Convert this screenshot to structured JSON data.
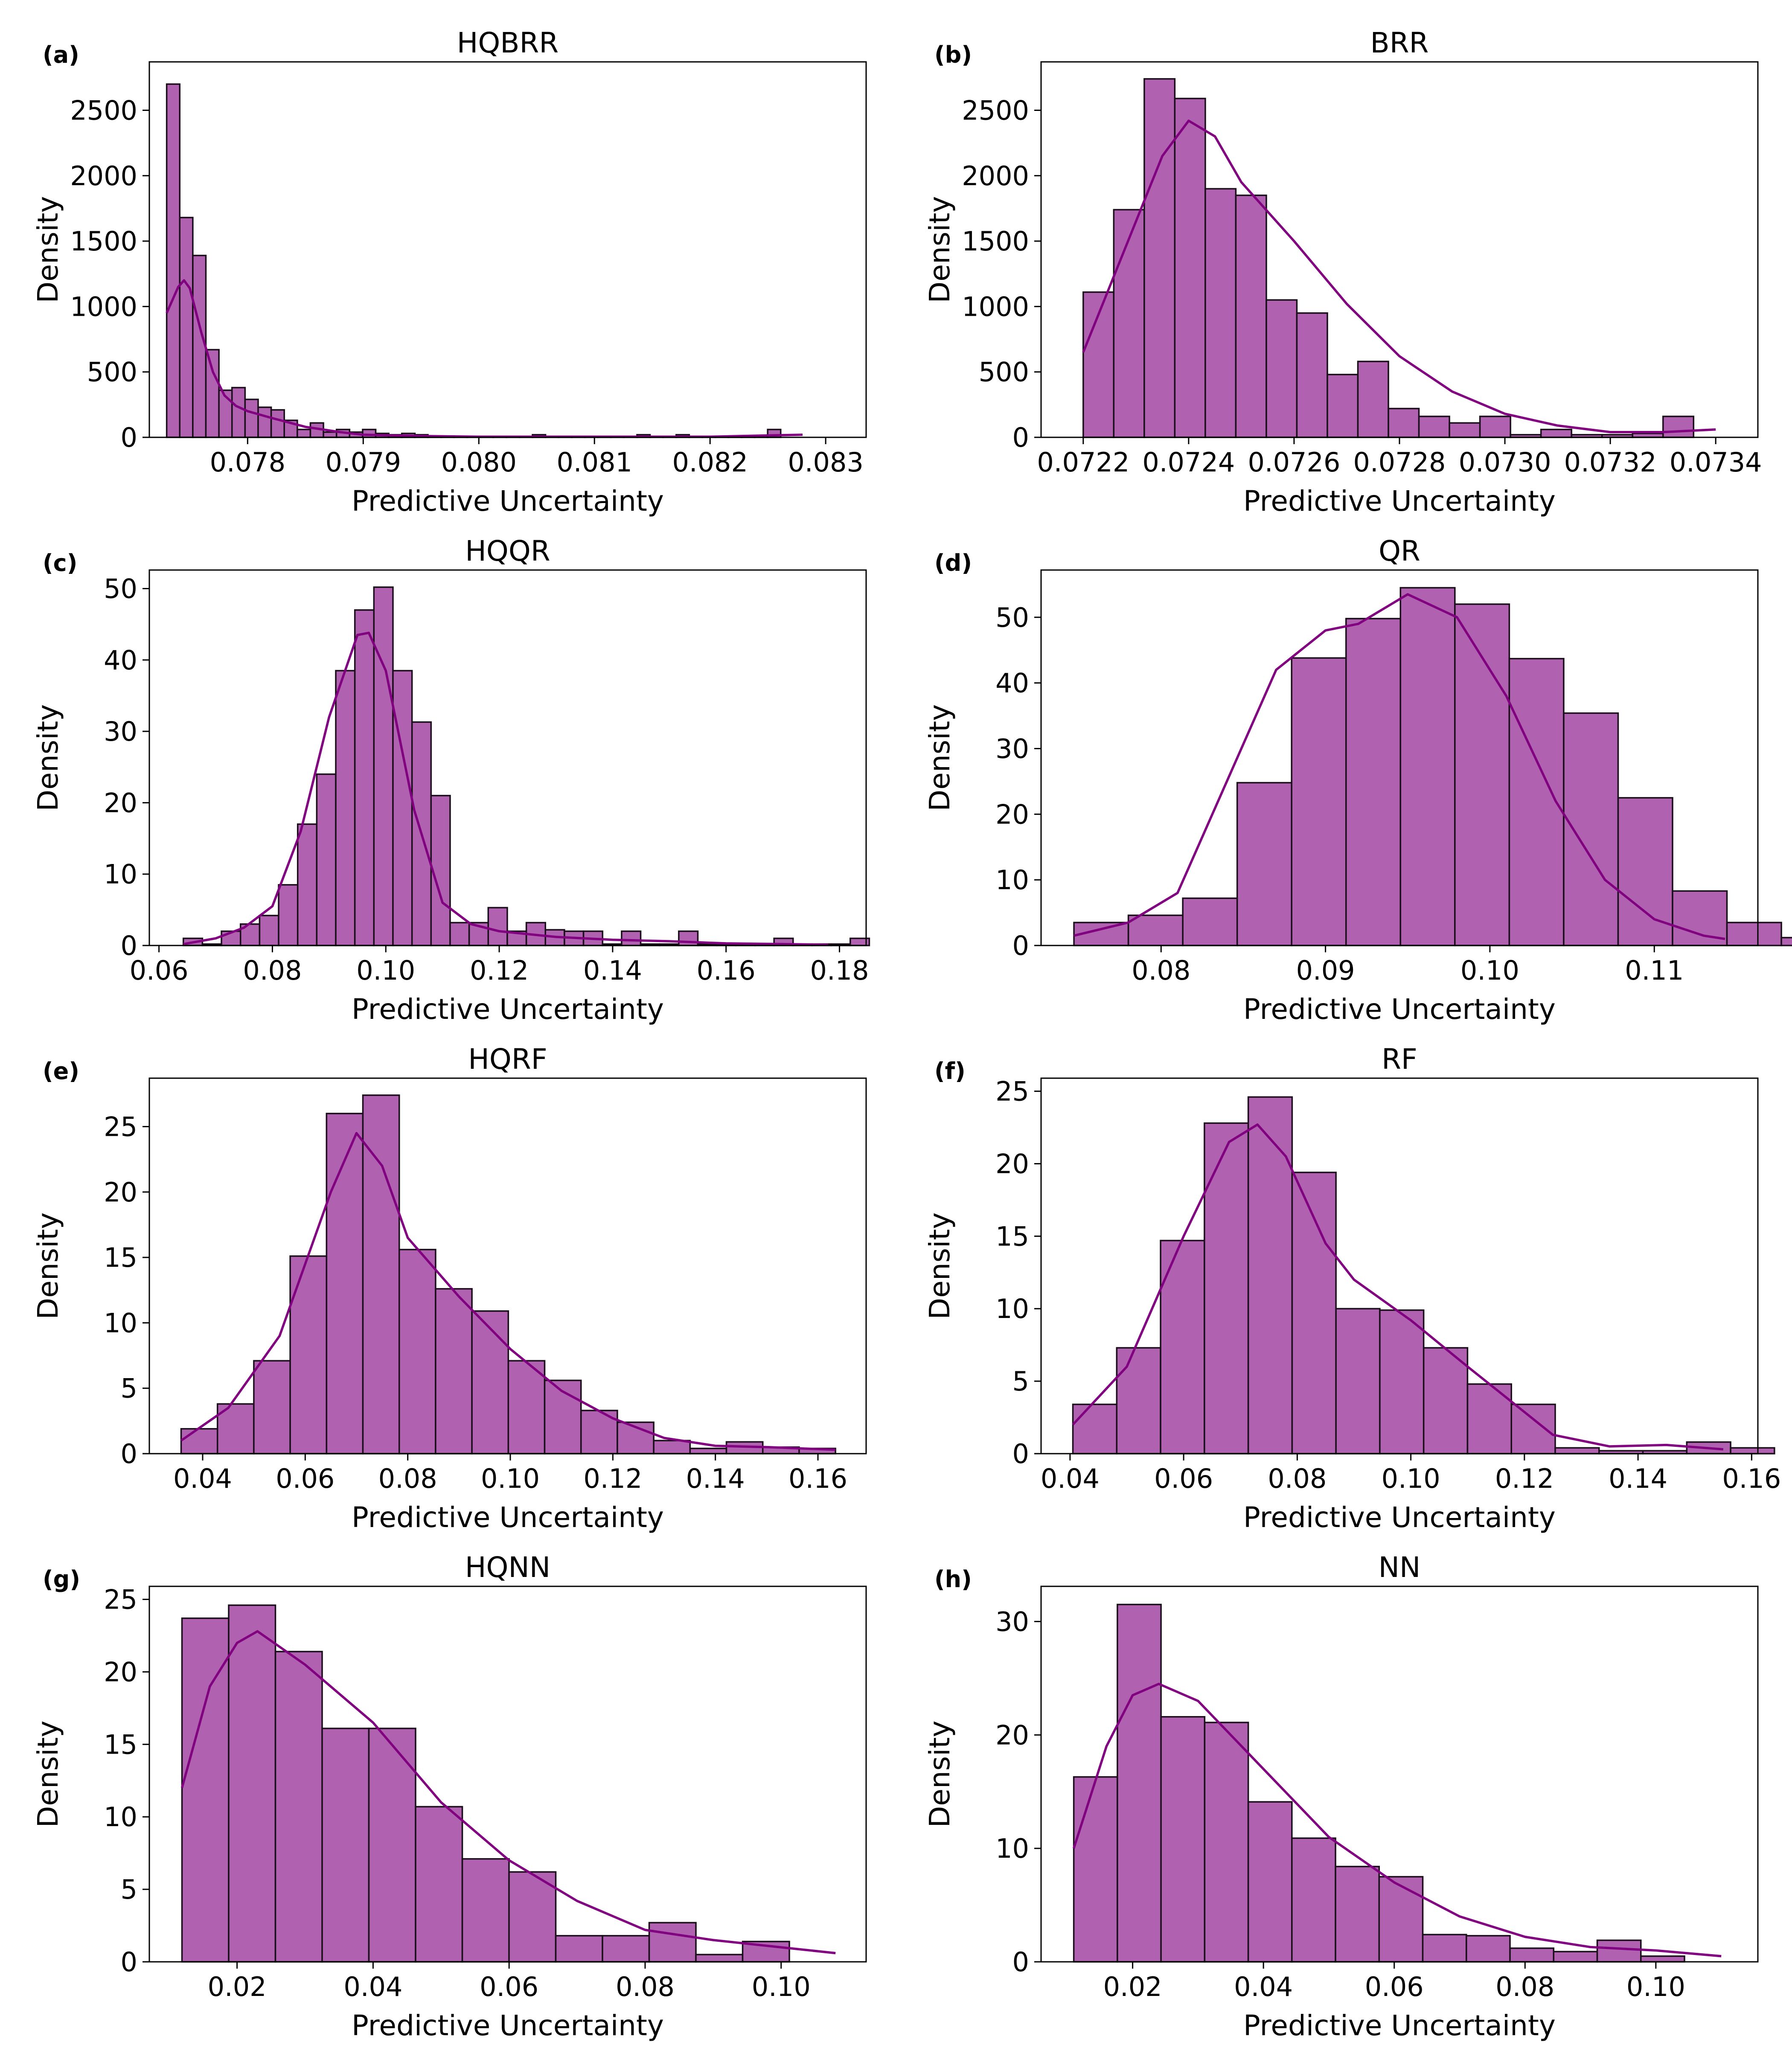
{
  "chart_data": [
    {
      "panel_label": "(a)",
      "title": "HQBRR",
      "type": "bar",
      "xlabel": "Predictive Uncertainty",
      "ylabel": "Density",
      "xlim": [
        0.07715,
        0.08335
      ],
      "ylim": [
        0,
        2870
      ],
      "xticks": [
        0.078,
        0.079,
        0.08,
        0.081,
        0.082,
        0.083
      ],
      "xtick_labels": [
        "0.078",
        "0.079",
        "0.080",
        "0.081",
        "0.082",
        "0.083"
      ],
      "yticks": [
        0,
        500,
        1000,
        1500,
        2000,
        2500
      ],
      "ytick_labels": [
        "0",
        "500",
        "1000",
        "1500",
        "2000",
        "2500"
      ],
      "bin_start": 0.0773,
      "bin_width": 0.000113,
      "values": [
        2700,
        1680,
        1390,
        670,
        360,
        380,
        290,
        230,
        210,
        130,
        60,
        110,
        40,
        60,
        40,
        60,
        30,
        20,
        30,
        20,
        10,
        10,
        5,
        5,
        5,
        5,
        5,
        5,
        20,
        5,
        5,
        5,
        5,
        5,
        5,
        5,
        20,
        5,
        5,
        20,
        5,
        5,
        5,
        5,
        5,
        5,
        60
      ],
      "kde": [
        [
          0.0773,
          950
        ],
        [
          0.0774,
          1150
        ],
        [
          0.07745,
          1200
        ],
        [
          0.0775,
          1140
        ],
        [
          0.0776,
          800
        ],
        [
          0.0777,
          500
        ],
        [
          0.0778,
          320
        ],
        [
          0.0779,
          240
        ],
        [
          0.078,
          200
        ],
        [
          0.0782,
          150
        ],
        [
          0.0785,
          80
        ],
        [
          0.0788,
          40
        ],
        [
          0.079,
          20
        ],
        [
          0.0795,
          10
        ],
        [
          0.08,
          5
        ],
        [
          0.081,
          5
        ],
        [
          0.082,
          5
        ],
        [
          0.0828,
          20
        ]
      ]
    },
    {
      "panel_label": "(b)",
      "title": "BRR",
      "type": "bar",
      "xlabel": "Predictive Uncertainty",
      "ylabel": "Density",
      "xlim": [
        0.07212,
        0.07348
      ],
      "ylim": [
        0,
        2870
      ],
      "xticks": [
        0.0722,
        0.0724,
        0.0726,
        0.0728,
        0.073,
        0.0732,
        0.0734
      ],
      "xtick_labels": [
        "0.0722",
        "0.0724",
        "0.0726",
        "0.0728",
        "0.0730",
        "0.0732",
        "0.0734"
      ],
      "yticks": [
        0,
        500,
        1000,
        1500,
        2000,
        2500
      ],
      "ytick_labels": [
        "0",
        "500",
        "1000",
        "1500",
        "2000",
        "2500"
      ],
      "bin_start": 0.0722,
      "bin_width": 5.79e-05,
      "values": [
        1110,
        1740,
        2740,
        2590,
        1900,
        1850,
        1050,
        950,
        480,
        580,
        220,
        160,
        110,
        160,
        20,
        60,
        20,
        20,
        30,
        160
      ],
      "kde": [
        [
          0.0722,
          650
        ],
        [
          0.0723,
          1650
        ],
        [
          0.07235,
          2150
        ],
        [
          0.0724,
          2420
        ],
        [
          0.07245,
          2300
        ],
        [
          0.0725,
          1950
        ],
        [
          0.0726,
          1500
        ],
        [
          0.0727,
          1020
        ],
        [
          0.0728,
          620
        ],
        [
          0.0729,
          350
        ],
        [
          0.073,
          180
        ],
        [
          0.0731,
          90
        ],
        [
          0.0732,
          40
        ],
        [
          0.0733,
          40
        ],
        [
          0.0734,
          60
        ]
      ]
    },
    {
      "panel_label": "(c)",
      "title": "HQQR",
      "type": "bar",
      "xlabel": "Predictive Uncertainty",
      "ylabel": "Density",
      "xlim": [
        0.0583,
        0.1847
      ],
      "ylim": [
        0,
        52.6
      ],
      "xticks": [
        0.06,
        0.08,
        0.1,
        0.12,
        0.14,
        0.16,
        0.18
      ],
      "xtick_labels": [
        "0.06",
        "0.08",
        "0.10",
        "0.12",
        "0.14",
        "0.16",
        "0.18"
      ],
      "yticks": [
        0,
        10,
        20,
        30,
        40,
        50
      ],
      "ytick_labels": [
        "0",
        "10",
        "20",
        "30",
        "40",
        "50"
      ],
      "bin_start": 0.0643,
      "bin_width": 0.00336,
      "values": [
        1.0,
        0.2,
        2.0,
        3.0,
        4.2,
        8.5,
        17.0,
        24.0,
        38.5,
        47.0,
        50.2,
        38.5,
        31.3,
        21.0,
        3.2,
        3.2,
        5.3,
        2.0,
        3.2,
        2.2,
        2.0,
        2.0,
        0.2,
        2.0,
        0.2,
        0.2,
        2.0,
        0.2,
        0.2,
        0.2,
        0.2,
        1.0,
        0.2,
        0.2,
        0.2,
        1.0
      ],
      "kde": [
        [
          0.0643,
          0.2
        ],
        [
          0.07,
          1.0
        ],
        [
          0.075,
          2.5
        ],
        [
          0.08,
          5.5
        ],
        [
          0.085,
          16.0
        ],
        [
          0.09,
          32.0
        ],
        [
          0.095,
          43.5
        ],
        [
          0.097,
          43.8
        ],
        [
          0.1,
          38.5
        ],
        [
          0.105,
          19.0
        ],
        [
          0.11,
          6.0
        ],
        [
          0.115,
          3.0
        ],
        [
          0.12,
          2.0
        ],
        [
          0.13,
          1.2
        ],
        [
          0.14,
          0.8
        ],
        [
          0.15,
          0.6
        ],
        [
          0.16,
          0.3
        ],
        [
          0.17,
          0.2
        ],
        [
          0.178,
          0.1
        ]
      ]
    },
    {
      "panel_label": "(d)",
      "title": "QR",
      "type": "bar",
      "xlabel": "Predictive Uncertainty",
      "ylabel": "Density",
      "xlim": [
        0.0727,
        0.1163
      ],
      "ylim": [
        0,
        57.2
      ],
      "xticks": [
        0.08,
        0.09,
        0.1,
        0.11
      ],
      "xtick_labels": [
        "0.08",
        "0.09",
        "0.10",
        "0.11"
      ],
      "yticks": [
        0,
        10,
        20,
        30,
        40,
        50
      ],
      "ytick_labels": [
        "0",
        "10",
        "20",
        "30",
        "40",
        "50"
      ],
      "bin_start": 0.0747,
      "bin_width": 0.00331,
      "values": [
        3.5,
        4.6,
        7.2,
        24.8,
        43.8,
        49.8,
        54.5,
        52.0,
        43.7,
        35.4,
        22.5,
        8.3,
        3.5,
        1.2
      ],
      "kde": [
        [
          0.0747,
          1.5
        ],
        [
          0.078,
          3.5
        ],
        [
          0.081,
          8.0
        ],
        [
          0.084,
          25.0
        ],
        [
          0.087,
          42.0
        ],
        [
          0.09,
          48.0
        ],
        [
          0.092,
          49.0
        ],
        [
          0.095,
          53.5
        ],
        [
          0.098,
          50.0
        ],
        [
          0.101,
          38.0
        ],
        [
          0.104,
          22.0
        ],
        [
          0.107,
          10.0
        ],
        [
          0.11,
          4.0
        ],
        [
          0.113,
          1.5
        ],
        [
          0.1143,
          1.0
        ]
      ]
    },
    {
      "panel_label": "(e)",
      "title": "HQRF",
      "type": "bar",
      "xlabel": "Predictive Uncertainty",
      "ylabel": "Density",
      "xlim": [
        0.0296,
        0.1694
      ],
      "ylim": [
        0,
        28.7
      ],
      "xticks": [
        0.04,
        0.06,
        0.08,
        0.1,
        0.12,
        0.14,
        0.16
      ],
      "xtick_labels": [
        "0.04",
        "0.06",
        "0.08",
        "0.10",
        "0.12",
        "0.14",
        "0.16"
      ],
      "yticks": [
        0,
        5,
        10,
        15,
        20,
        25
      ],
      "ytick_labels": [
        "0",
        "5",
        "10",
        "15",
        "20",
        "25"
      ],
      "bin_start": 0.0358,
      "bin_width": 0.00709,
      "values": [
        1.9,
        3.8,
        7.1,
        15.1,
        26.0,
        27.4,
        15.6,
        12.6,
        10.9,
        7.1,
        5.6,
        3.3,
        2.4,
        1.0,
        0.4,
        0.9,
        0.5,
        0.4
      ],
      "kde": [
        [
          0.0358,
          1.0
        ],
        [
          0.045,
          3.5
        ],
        [
          0.055,
          9.0
        ],
        [
          0.065,
          20.0
        ],
        [
          0.07,
          24.5
        ],
        [
          0.075,
          22.0
        ],
        [
          0.08,
          16.5
        ],
        [
          0.09,
          12.0
        ],
        [
          0.1,
          8.0
        ],
        [
          0.11,
          4.8
        ],
        [
          0.12,
          2.7
        ],
        [
          0.13,
          1.2
        ],
        [
          0.14,
          0.6
        ],
        [
          0.15,
          0.5
        ],
        [
          0.1634,
          0.3
        ]
      ]
    },
    {
      "panel_label": "(f)",
      "title": "RF",
      "type": "bar",
      "xlabel": "Predictive Uncertainty",
      "ylabel": "Density",
      "xlim": [
        0.0349,
        0.1611
      ],
      "ylim": [
        0,
        25.9
      ],
      "xticks": [
        0.04,
        0.06,
        0.08,
        0.1,
        0.12,
        0.14,
        0.16
      ],
      "xtick_labels": [
        "0.04",
        "0.06",
        "0.08",
        "0.10",
        "0.12",
        "0.14",
        "0.16"
      ],
      "yticks": [
        0,
        5,
        10,
        15,
        20,
        25
      ],
      "ytick_labels": [
        "0",
        "5",
        "10",
        "15",
        "20",
        "25"
      ],
      "bin_start": 0.0405,
      "bin_width": 0.00772,
      "values": [
        3.4,
        7.3,
        14.7,
        22.8,
        24.6,
        19.4,
        10.0,
        9.9,
        7.3,
        4.8,
        3.4,
        0.4,
        0.2,
        0.2,
        0.8,
        0.4
      ],
      "kde": [
        [
          0.0405,
          2.0
        ],
        [
          0.05,
          6.0
        ],
        [
          0.06,
          15.0
        ],
        [
          0.068,
          21.5
        ],
        [
          0.073,
          22.7
        ],
        [
          0.078,
          20.5
        ],
        [
          0.085,
          14.5
        ],
        [
          0.09,
          12.0
        ],
        [
          0.1,
          9.2
        ],
        [
          0.11,
          6.0
        ],
        [
          0.118,
          3.5
        ],
        [
          0.125,
          1.3
        ],
        [
          0.135,
          0.5
        ],
        [
          0.145,
          0.6
        ],
        [
          0.155,
          0.3
        ]
      ]
    },
    {
      "panel_label": "(g)",
      "title": "HQNN",
      "type": "bar",
      "xlabel": "Predictive Uncertainty",
      "ylabel": "Density",
      "xlim": [
        0.0071,
        0.1125
      ],
      "ylim": [
        0,
        25.9
      ],
      "xticks": [
        0.02,
        0.04,
        0.06,
        0.08,
        0.1
      ],
      "xtick_labels": [
        "0.02",
        "0.04",
        "0.06",
        "0.08",
        "0.10"
      ],
      "yticks": [
        0,
        5,
        10,
        15,
        20,
        25
      ],
      "ytick_labels": [
        "0",
        "5",
        "10",
        "15",
        "20",
        "25"
      ],
      "bin_start": 0.0119,
      "bin_width": 0.00687,
      "values": [
        23.7,
        24.6,
        21.4,
        16.1,
        16.1,
        10.7,
        7.1,
        6.2,
        1.8,
        1.8,
        2.7,
        0.5,
        1.4
      ],
      "kde": [
        [
          0.0119,
          12.0
        ],
        [
          0.016,
          19.0
        ],
        [
          0.02,
          22.0
        ],
        [
          0.023,
          22.8
        ],
        [
          0.03,
          20.5
        ],
        [
          0.04,
          16.5
        ],
        [
          0.05,
          11.0
        ],
        [
          0.06,
          7.0
        ],
        [
          0.07,
          4.2
        ],
        [
          0.08,
          2.2
        ],
        [
          0.09,
          1.5
        ],
        [
          0.1,
          1.0
        ],
        [
          0.108,
          0.6
        ]
      ]
    },
    {
      "panel_label": "(h)",
      "title": "NN",
      "type": "bar",
      "xlabel": "Predictive Uncertainty",
      "ylabel": "Density",
      "xlim": [
        0.006,
        0.1156
      ],
      "ylim": [
        0,
        33.1
      ],
      "xticks": [
        0.02,
        0.04,
        0.06,
        0.08,
        0.1
      ],
      "xtick_labels": [
        "0.02",
        "0.04",
        "0.06",
        "0.08",
        "0.10"
      ],
      "yticks": [
        0,
        10,
        20,
        30
      ],
      "ytick_labels": [
        "0",
        "10",
        "20",
        "30"
      ],
      "bin_start": 0.011,
      "bin_width": 0.00667,
      "values": [
        16.3,
        31.5,
        21.6,
        21.1,
        14.1,
        10.9,
        8.4,
        7.5,
        2.4,
        2.3,
        1.2,
        0.9,
        1.9,
        0.5
      ],
      "kde": [
        [
          0.011,
          10.0
        ],
        [
          0.016,
          19.0
        ],
        [
          0.02,
          23.5
        ],
        [
          0.024,
          24.5
        ],
        [
          0.03,
          23.0
        ],
        [
          0.04,
          17.0
        ],
        [
          0.05,
          11.0
        ],
        [
          0.06,
          7.0
        ],
        [
          0.07,
          4.0
        ],
        [
          0.08,
          2.2
        ],
        [
          0.09,
          1.3
        ],
        [
          0.1,
          1.0
        ],
        [
          0.11,
          0.5
        ]
      ]
    }
  ]
}
